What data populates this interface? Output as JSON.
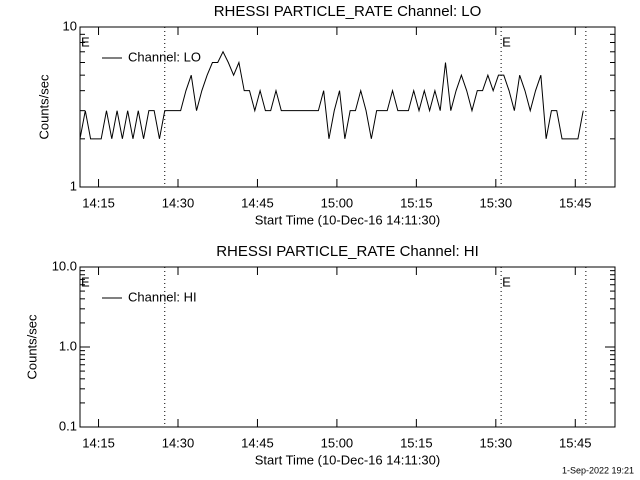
{
  "chart_data": [
    {
      "type": "line",
      "title": "RHESSI PARTICLE_RATE Channel: LO",
      "xlabel": "Start Time (10-Dec-16 14:11:30)",
      "ylabel": "Counts/sec",
      "log_y": true,
      "legend": "upper left",
      "xlim": [
        0,
        101
      ],
      "ylim": [
        1,
        10
      ],
      "xticks": [
        {
          "value": 3.5,
          "label": "14:15"
        },
        {
          "value": 18.5,
          "label": "14:30"
        },
        {
          "value": 33.5,
          "label": "14:45"
        },
        {
          "value": 48.5,
          "label": "15:00"
        },
        {
          "value": 63.5,
          "label": "15:15"
        },
        {
          "value": 78.5,
          "label": "15:30"
        },
        {
          "value": 93.5,
          "label": "15:45"
        }
      ],
      "yticks": [
        1,
        10
      ],
      "vlines": [
        16,
        79.5,
        95.5
      ],
      "annotations": [
        {
          "x": 0,
          "text": "E"
        },
        {
          "x": 79.5,
          "text": "E"
        }
      ],
      "series": [
        {
          "name": "Channel: LO",
          "color": "#000000",
          "x": [
            0,
            1,
            2,
            3,
            4,
            5,
            6,
            7,
            8,
            9,
            10,
            11,
            12,
            13,
            14,
            15,
            16,
            17,
            18,
            19,
            20,
            21,
            22,
            23,
            24,
            25,
            26,
            27,
            28,
            29,
            30,
            31,
            32,
            33,
            34,
            35,
            36,
            37,
            38,
            39,
            40,
            41,
            42,
            43,
            44,
            45,
            46,
            47,
            48,
            49,
            50,
            51,
            52,
            53,
            54,
            55,
            56,
            57,
            58,
            59,
            60,
            61,
            62,
            63,
            64,
            65,
            66,
            67,
            68,
            69,
            70,
            71,
            72,
            73,
            74,
            75,
            76,
            77,
            78,
            79,
            80,
            81,
            82,
            83,
            84,
            85,
            86,
            87,
            88,
            89,
            90,
            91,
            92,
            93,
            94,
            95
          ],
          "values": [
            2,
            3,
            2,
            2,
            2,
            3,
            2,
            3,
            2,
            3,
            2,
            3,
            2,
            3,
            3,
            2,
            3,
            3,
            3,
            3,
            4,
            5,
            3,
            4,
            5,
            6,
            6,
            7,
            6,
            5,
            6,
            4,
            4,
            3,
            4,
            3,
            3,
            4,
            3,
            3,
            3,
            3,
            3,
            3,
            3,
            3,
            4,
            2,
            3,
            4,
            2,
            3,
            3,
            4,
            3,
            2,
            3,
            3,
            3,
            4,
            3,
            3,
            3,
            4,
            3,
            4,
            3,
            4,
            3,
            6,
            3,
            4,
            5,
            4,
            3,
            4,
            4,
            5,
            4,
            5,
            5,
            4,
            3,
            5,
            4,
            3,
            4,
            5,
            2,
            3,
            3,
            2,
            2,
            2,
            2,
            3
          ]
        }
      ]
    },
    {
      "type": "line",
      "title": "RHESSI PARTICLE_RATE Channel: HI",
      "xlabel": "Start Time (10-Dec-16 14:11:30)",
      "ylabel": "Counts/sec",
      "log_y": true,
      "legend": "upper left",
      "xlim": [
        0,
        101
      ],
      "ylim": [
        0.1,
        10
      ],
      "xticks": [
        {
          "value": 3.5,
          "label": "14:15"
        },
        {
          "value": 18.5,
          "label": "14:30"
        },
        {
          "value": 33.5,
          "label": "14:45"
        },
        {
          "value": 48.5,
          "label": "15:00"
        },
        {
          "value": 63.5,
          "label": "15:15"
        },
        {
          "value": 78.5,
          "label": "15:30"
        },
        {
          "value": 93.5,
          "label": "15:45"
        }
      ],
      "yticks": [
        0.1,
        {
          "value": 1,
          "label": "1.0"
        },
        {
          "value": 10,
          "label": "10.0"
        }
      ],
      "vlines": [
        16,
        79.5,
        95.5
      ],
      "annotations": [
        {
          "x": 0,
          "text": "E"
        },
        {
          "x": 79.5,
          "text": "E"
        }
      ],
      "series": [
        {
          "name": "Channel: HI",
          "color": "#000000",
          "x": [],
          "values": []
        }
      ]
    }
  ],
  "timestamp": "1-Sep-2022 19:21"
}
